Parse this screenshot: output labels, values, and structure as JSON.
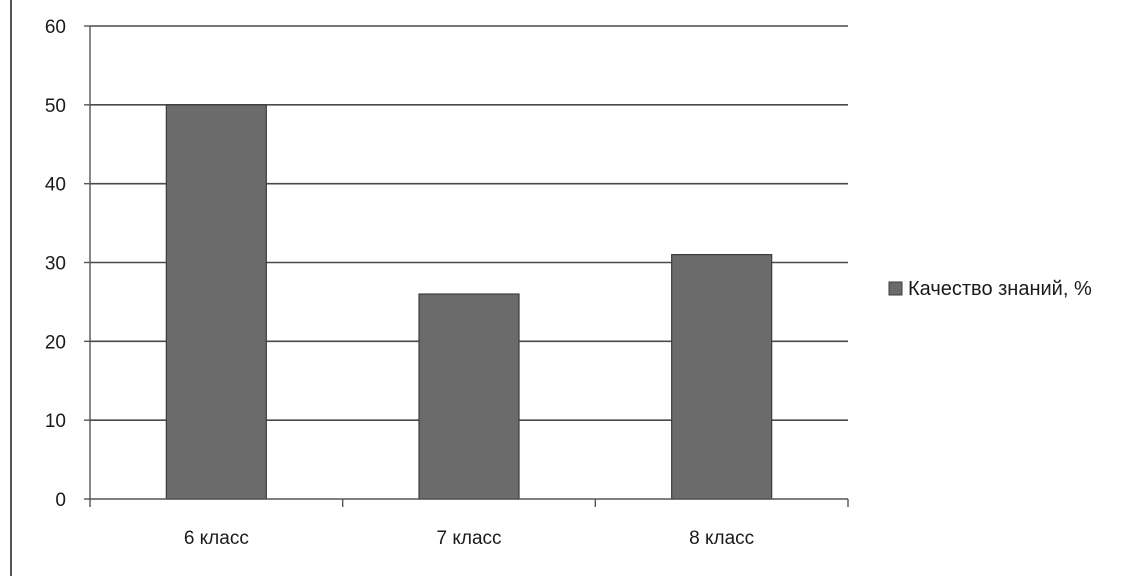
{
  "chart_data": {
    "type": "bar",
    "categories": [
      "6 класс",
      "7 класс",
      "8 класс"
    ],
    "series": [
      {
        "name": "Качество знаний, %",
        "values": [
          50,
          26,
          31
        ]
      }
    ],
    "title": "",
    "xlabel": "",
    "ylabel": "",
    "ylim": [
      0,
      60
    ],
    "y_ticks": [
      "0",
      "10",
      "20",
      "30",
      "40",
      "50",
      "60"
    ],
    "grid": true,
    "legend_position": "right",
    "colors": {
      "bar": "#6b6b6b",
      "bar_edge": "#3c3c3c",
      "grid": "#4a4a4a",
      "axis": "#555555"
    }
  }
}
